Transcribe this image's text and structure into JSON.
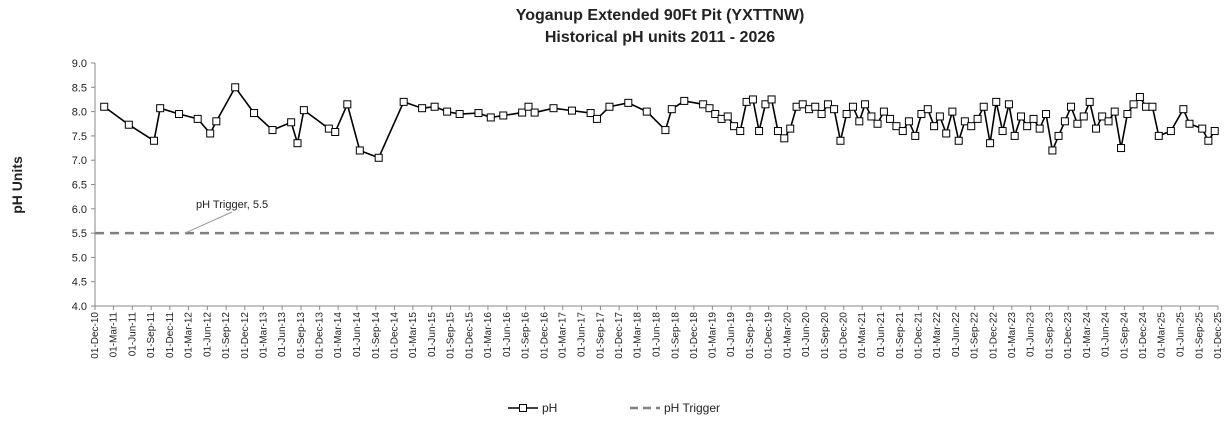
{
  "chart_data": {
    "type": "line",
    "title": "Yoganup Extended 90Ft Pit (YXTTNW)",
    "subtitle": "Historical pH units 2011 - 2026",
    "y_label": "pH Units",
    "annotation": "pH Trigger, 5.5",
    "legend": "bottom",
    "ylim": [
      4,
      9
    ],
    "yticks": [
      {
        "value": 4,
        "label": "4.0"
      },
      {
        "value": 4.5,
        "label": "4.5"
      },
      {
        "value": 5,
        "label": "5.0"
      },
      {
        "value": 5.5,
        "label": "5.5"
      },
      {
        "value": 6,
        "label": "6.0"
      },
      {
        "value": 6.5,
        "label": "6.5"
      },
      {
        "value": 7,
        "label": "7.0"
      },
      {
        "value": 7.5,
        "label": "7.5"
      },
      {
        "value": 8,
        "label": "8.0"
      },
      {
        "value": 8.5,
        "label": "8.5"
      },
      {
        "value": 9,
        "label": "9.0"
      }
    ],
    "xlim": [
      "2010-12-01",
      "2025-12-01"
    ],
    "xticks": [
      {
        "value": "2010-12-01",
        "label": "01-Dec-10"
      },
      {
        "value": "2011-03-01",
        "label": "01-Mar-11"
      },
      {
        "value": "2011-06-01",
        "label": "01-Jun-11"
      },
      {
        "value": "2011-09-01",
        "label": "01-Sep-11"
      },
      {
        "value": "2011-12-01",
        "label": "01-Dec-11"
      },
      {
        "value": "2012-03-01",
        "label": "01-Mar-12"
      },
      {
        "value": "2012-06-01",
        "label": "01-Jun-12"
      },
      {
        "value": "2012-09-01",
        "label": "01-Sep-12"
      },
      {
        "value": "2012-12-01",
        "label": "01-Dec-12"
      },
      {
        "value": "2013-03-01",
        "label": "01-Mar-13"
      },
      {
        "value": "2013-06-01",
        "label": "01-Jun-13"
      },
      {
        "value": "2013-09-01",
        "label": "01-Sep-13"
      },
      {
        "value": "2013-12-01",
        "label": "01-Dec-13"
      },
      {
        "value": "2014-03-01",
        "label": "01-Mar-14"
      },
      {
        "value": "2014-06-01",
        "label": "01-Jun-14"
      },
      {
        "value": "2014-09-01",
        "label": "01-Sep-14"
      },
      {
        "value": "2014-12-01",
        "label": "01-Dec-14"
      },
      {
        "value": "2015-03-01",
        "label": "01-Mar-15"
      },
      {
        "value": "2015-06-01",
        "label": "01-Jun-15"
      },
      {
        "value": "2015-09-01",
        "label": "01-Sep-15"
      },
      {
        "value": "2015-12-01",
        "label": "01-Dec-15"
      },
      {
        "value": "2016-03-01",
        "label": "01-Mar-16"
      },
      {
        "value": "2016-06-01",
        "label": "01-Jun-16"
      },
      {
        "value": "2016-09-01",
        "label": "01-Sep-16"
      },
      {
        "value": "2016-12-01",
        "label": "01-Dec-16"
      },
      {
        "value": "2017-03-01",
        "label": "01-Mar-17"
      },
      {
        "value": "2017-06-01",
        "label": "01-Jun-17"
      },
      {
        "value": "2017-09-01",
        "label": "01-Sep-17"
      },
      {
        "value": "2017-12-01",
        "label": "01-Dec-17"
      },
      {
        "value": "2018-03-01",
        "label": "01-Mar-18"
      },
      {
        "value": "2018-06-01",
        "label": "01-Jun-18"
      },
      {
        "value": "2018-09-01",
        "label": "01-Sep-18"
      },
      {
        "value": "2018-12-01",
        "label": "01-Dec-18"
      },
      {
        "value": "2019-03-01",
        "label": "01-Mar-19"
      },
      {
        "value": "2019-06-01",
        "label": "01-Jun-19"
      },
      {
        "value": "2019-09-01",
        "label": "01-Sep-19"
      },
      {
        "value": "2019-12-01",
        "label": "01-Dec-19"
      },
      {
        "value": "2020-03-01",
        "label": "01-Mar-20"
      },
      {
        "value": "2020-06-01",
        "label": "01-Jun-20"
      },
      {
        "value": "2020-09-01",
        "label": "01-Sep-20"
      },
      {
        "value": "2020-12-01",
        "label": "01-Dec-20"
      },
      {
        "value": "2021-03-01",
        "label": "01-Mar-21"
      },
      {
        "value": "2021-06-01",
        "label": "01-Jun-21"
      },
      {
        "value": "2021-09-01",
        "label": "01-Sep-21"
      },
      {
        "value": "2021-12-01",
        "label": "01-Dec-21"
      },
      {
        "value": "2022-03-01",
        "label": "01-Mar-22"
      },
      {
        "value": "2022-06-01",
        "label": "01-Jun-22"
      },
      {
        "value": "2022-09-01",
        "label": "01-Sep-22"
      },
      {
        "value": "2022-12-01",
        "label": "01-Dec-22"
      },
      {
        "value": "2023-03-01",
        "label": "01-Mar-23"
      },
      {
        "value": "2023-06-01",
        "label": "01-Jun-23"
      },
      {
        "value": "2023-09-01",
        "label": "01-Sep-23"
      },
      {
        "value": "2023-12-01",
        "label": "01-Dec-23"
      },
      {
        "value": "2024-03-01",
        "label": "01-Mar-24"
      },
      {
        "value": "2024-06-01",
        "label": "01-Jun-24"
      },
      {
        "value": "2024-09-01",
        "label": "01-Sep-24"
      },
      {
        "value": "2024-12-01",
        "label": "01-Dec-24"
      },
      {
        "value": "2025-03-01",
        "label": "01-Mar-25"
      },
      {
        "value": "2025-06-01",
        "label": "01-Jun-25"
      },
      {
        "value": "2025-09-01",
        "label": "01-Sep-25"
      },
      {
        "value": "2025-12-01",
        "label": "01-Dec-25"
      }
    ],
    "series": [
      {
        "name": "pH",
        "color": "#000000",
        "marker": "square",
        "dash": false,
        "x": [
          "2011-01-15",
          "2011-05-15",
          "2011-09-15",
          "2011-10-15",
          "2012-01-15",
          "2012-04-15",
          "2012-06-15",
          "2012-07-15",
          "2012-10-15",
          "2013-01-15",
          "2013-04-15",
          "2013-07-15",
          "2013-08-15",
          "2013-09-15",
          "2014-01-15",
          "2014-02-15",
          "2014-04-15",
          "2014-06-15",
          "2014-09-15",
          "2015-01-15",
          "2015-04-15",
          "2015-06-15",
          "2015-08-15",
          "2015-10-15",
          "2016-01-15",
          "2016-03-15",
          "2016-05-15",
          "2016-08-15",
          "2016-09-15",
          "2016-10-15",
          "2017-01-15",
          "2017-04-15",
          "2017-07-15",
          "2017-08-15",
          "2017-10-15",
          "2018-01-15",
          "2018-04-15",
          "2018-07-15",
          "2018-08-15",
          "2018-10-15",
          "2019-01-15",
          "2019-02-15",
          "2019-03-15",
          "2019-04-15",
          "2019-05-15",
          "2019-06-15",
          "2019-07-15",
          "2019-08-15",
          "2019-09-15",
          "2019-10-15",
          "2019-11-15",
          "2019-12-15",
          "2020-01-15",
          "2020-02-15",
          "2020-03-15",
          "2020-04-15",
          "2020-05-15",
          "2020-06-15",
          "2020-07-15",
          "2020-08-15",
          "2020-09-15",
          "2020-10-15",
          "2020-11-15",
          "2020-12-15",
          "2021-01-15",
          "2021-02-15",
          "2021-03-15",
          "2021-04-15",
          "2021-05-15",
          "2021-06-15",
          "2021-07-15",
          "2021-08-15",
          "2021-09-15",
          "2021-10-15",
          "2021-11-15",
          "2021-12-15",
          "2022-01-15",
          "2022-02-15",
          "2022-03-15",
          "2022-04-15",
          "2022-05-15",
          "2022-06-15",
          "2022-07-15",
          "2022-08-15",
          "2022-09-15",
          "2022-10-15",
          "2022-11-15",
          "2022-12-15",
          "2023-01-15",
          "2023-02-15",
          "2023-03-15",
          "2023-04-15",
          "2023-05-15",
          "2023-06-15",
          "2023-07-15",
          "2023-08-15",
          "2023-09-15",
          "2023-10-15",
          "2023-11-15",
          "2023-12-15",
          "2024-01-15",
          "2024-02-15",
          "2024-03-15",
          "2024-04-15",
          "2024-05-15",
          "2024-06-15",
          "2024-07-15",
          "2024-08-15",
          "2024-09-15",
          "2024-10-15",
          "2024-11-15",
          "2024-12-15",
          "2025-01-15",
          "2025-02-15",
          "2025-04-15",
          "2025-06-15",
          "2025-07-15",
          "2025-09-15",
          "2025-10-15",
          "2025-11-15"
        ],
        "values": [
          8.1,
          7.73,
          7.4,
          8.07,
          7.95,
          7.85,
          7.55,
          7.8,
          8.5,
          7.97,
          7.62,
          7.78,
          7.35,
          8.03,
          7.65,
          7.58,
          8.15,
          7.2,
          7.05,
          8.2,
          8.07,
          8.1,
          8.0,
          7.95,
          7.97,
          7.88,
          7.92,
          7.98,
          8.1,
          7.98,
          8.07,
          8.02,
          7.97,
          7.85,
          8.1,
          8.18,
          8.0,
          7.62,
          8.05,
          8.22,
          8.15,
          8.07,
          7.95,
          7.85,
          7.9,
          7.7,
          7.6,
          8.2,
          8.25,
          7.6,
          8.15,
          8.25,
          7.6,
          7.45,
          7.65,
          8.1,
          8.15,
          8.05,
          8.1,
          7.95,
          8.15,
          8.05,
          7.4,
          7.95,
          8.1,
          7.8,
          8.15,
          7.9,
          7.75,
          8.0,
          7.85,
          7.7,
          7.6,
          7.8,
          7.5,
          7.95,
          8.05,
          7.7,
          7.9,
          7.55,
          8.0,
          7.4,
          7.8,
          7.7,
          7.85,
          8.1,
          7.35,
          8.2,
          7.6,
          8.15,
          7.5,
          7.9,
          7.7,
          7.85,
          7.65,
          7.95,
          7.2,
          7.5,
          7.8,
          8.1,
          7.75,
          7.9,
          8.2,
          7.65,
          7.9,
          7.8,
          8.0,
          7.25,
          7.95,
          8.15,
          8.3,
          8.1,
          8.1,
          7.5,
          7.6,
          8.05,
          7.75,
          7.65,
          7.4,
          7.6
        ]
      },
      {
        "name": "pH Trigger",
        "color": "#808080",
        "marker": "none",
        "dash": true,
        "x": [
          "2010-12-01",
          "2025-12-01"
        ],
        "values": [
          5.5,
          5.5
        ]
      }
    ]
  }
}
